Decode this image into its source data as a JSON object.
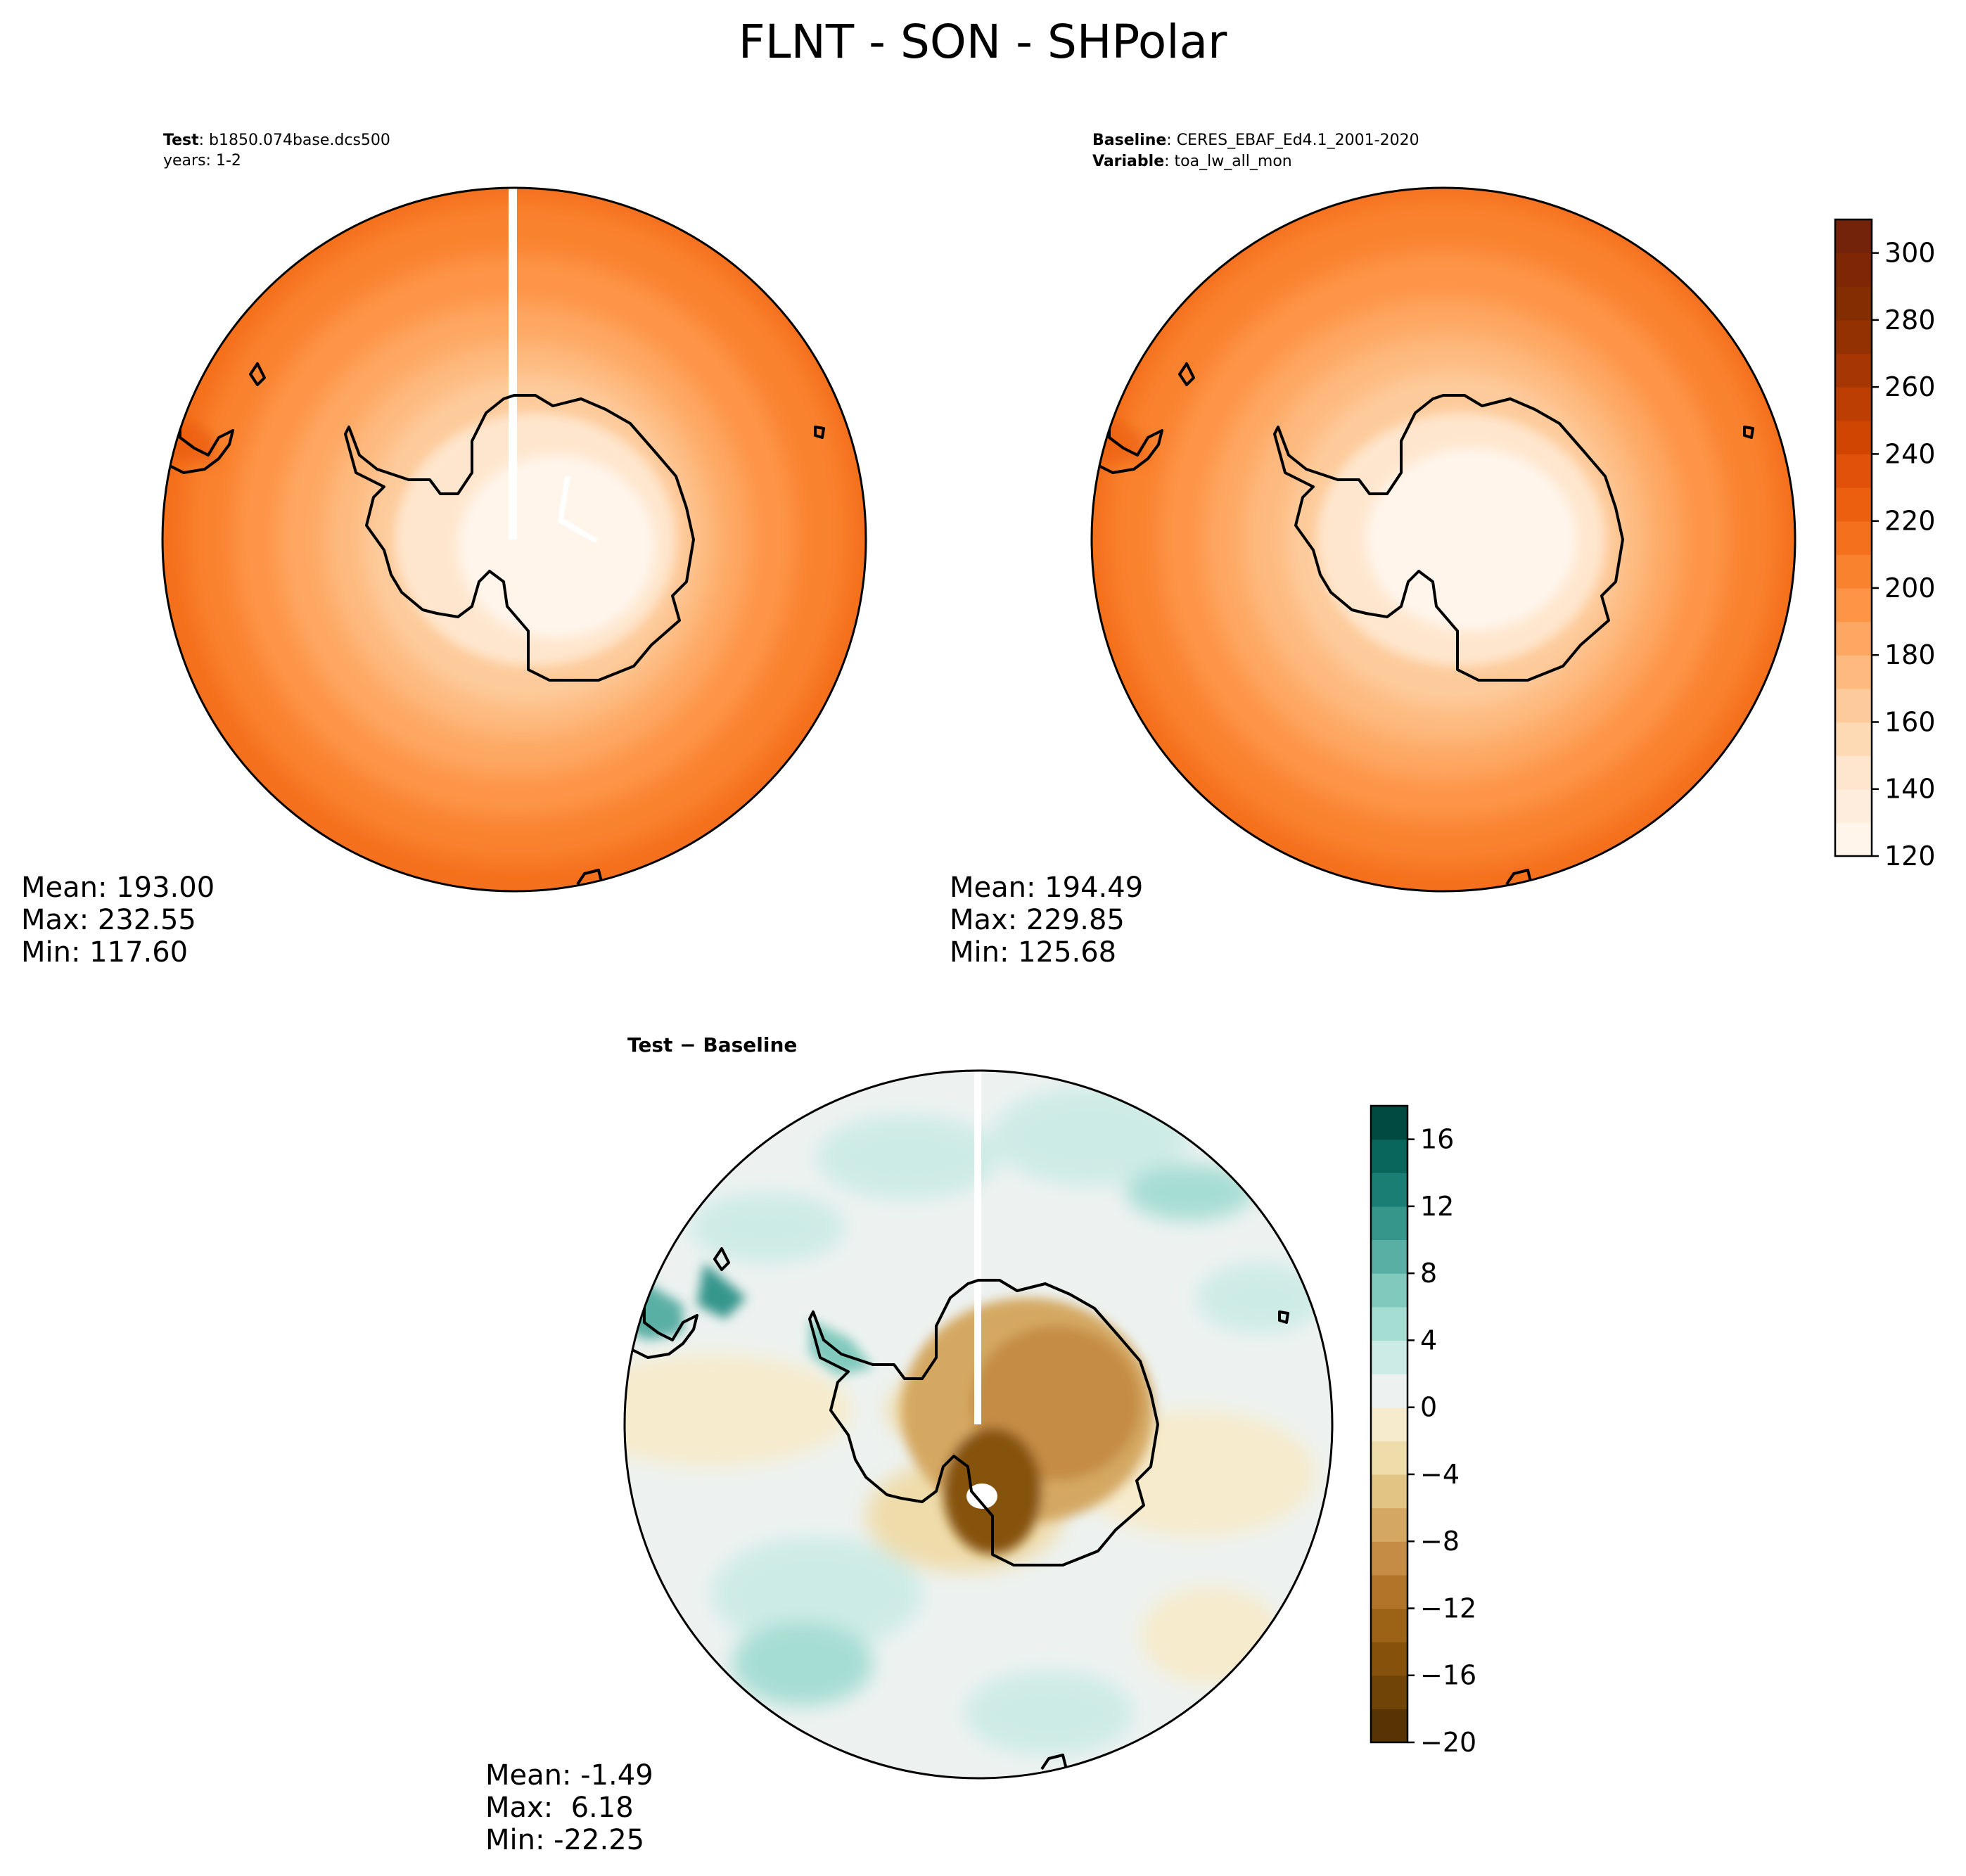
{
  "figure": {
    "title": "FLNT - SON - SHPolar"
  },
  "panels": {
    "test": {
      "label": "Test",
      "label_value": "b1850.074base.dcs500",
      "line2": "years: 1-2",
      "stats": {
        "mean": "Mean: 193.00",
        "max": "Max: 232.55",
        "min": "Min: 117.60"
      }
    },
    "baseline": {
      "label": "Baseline",
      "label_value": "CERES_EBAF_Ed4.1_2001-2020",
      "label2": "Variable",
      "label2_value": "toa_lw_all_mon",
      "stats": {
        "mean": "Mean: 194.49",
        "max": "Max: 229.85",
        "min": "Min: 125.68"
      }
    },
    "diff": {
      "label": "Test − Baseline",
      "stats": {
        "mean": "Mean: -1.49",
        "max": "Max:  6.18",
        "min": "Min: -22.25"
      }
    }
  },
  "chart_data": [
    {
      "type": "heatmap",
      "panel": "test",
      "projection": "south-polar-stereographic",
      "field_description": "rings increasing outward from ~120 over interior to ~230 at edge",
      "stats": {
        "mean": 193.0,
        "max": 232.55,
        "min": 117.6
      }
    },
    {
      "type": "heatmap",
      "panel": "baseline",
      "projection": "south-polar-stereographic",
      "stats": {
        "mean": 194.49,
        "max": 229.85,
        "min": 125.68
      }
    },
    {
      "type": "heatmap",
      "panel": "diff",
      "projection": "south-polar-stereographic",
      "stats": {
        "mean": -1.49,
        "max": 6.18,
        "min": -22.25
      }
    }
  ],
  "colorbars": {
    "main": {
      "vmin": 120,
      "vmax": 310,
      "levels": [
        120,
        130,
        140,
        150,
        160,
        170,
        180,
        190,
        200,
        210,
        220,
        230,
        240,
        250,
        260,
        270,
        280,
        290,
        300,
        310
      ],
      "ticks": [
        "120",
        "140",
        "160",
        "180",
        "200",
        "220",
        "240",
        "260",
        "280",
        "300"
      ],
      "colors": [
        "#fff5eb",
        "#feeddc",
        "#fee6ce",
        "#fdd9b4",
        "#fdcb9b",
        "#fdb97e",
        "#fda762",
        "#fd9446",
        "#f9822f",
        "#f4701d",
        "#eb5f0f",
        "#e1510a",
        "#d14503",
        "#bd3e02",
        "#a63603",
        "#933103",
        "#842c02",
        "#7f2704",
        "#73230a"
      ]
    },
    "diff": {
      "vmin": -20,
      "vmax": 18,
      "levels": [
        -20,
        -18,
        -16,
        -14,
        -12,
        -10,
        -8,
        -6,
        -4,
        -2,
        0,
        2,
        4,
        6,
        8,
        10,
        12,
        14,
        16,
        18
      ],
      "ticks": [
        "−20",
        "−16",
        "−12",
        "−8",
        "−4",
        "0",
        "4",
        "8",
        "12",
        "16"
      ],
      "colors": [
        "#583405",
        "#704407",
        "#86520b",
        "#9c6215",
        "#b27428",
        "#c48c44",
        "#d4a862",
        "#e2c484",
        "#efdcab",
        "#f6ebcc",
        "#edf2f0",
        "#cdebe6",
        "#a6ddd3",
        "#80c9bc",
        "#5aafa4",
        "#36968c",
        "#1a7e75",
        "#08665c",
        "#014a42"
      ]
    },
    "stripes_main": [
      {
        "value_from": 310,
        "value_to": 120,
        "note": ""
      }
    ]
  },
  "colors": {
    "ocean_outer": "#f4701d",
    "ring_2": "#f9822f",
    "ring_3": "#fd9446",
    "ring_4": "#fda762",
    "ring_5": "#fdb97e",
    "ring_6": "#fdcb9b",
    "ice_1": "#fee6ce",
    "ice_2": "#fff5eb",
    "diff_base": "#edf2f0",
    "diff_pos_light": "#cdebe6",
    "diff_pos_mid": "#a6ddd3",
    "diff_pos_strong": "#36968c",
    "diff_neg_light": "#f6ebcc",
    "diff_neg_mid": "#d4a862",
    "diff_neg_strong": "#86520b",
    "coast": "#000000"
  }
}
